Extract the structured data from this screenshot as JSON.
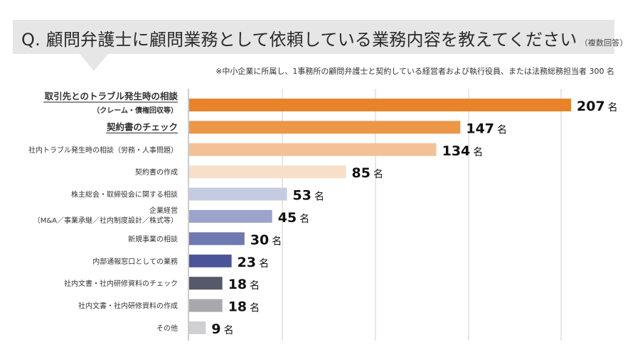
{
  "title": {
    "text": "Q. 顧問弁護士に顧問業務として依頼している業務内容を教えてください",
    "note": "（複数回答）"
  },
  "footnote": "※中小企業に所属し、1事務所の顧問弁護士と契約している経営者および執行役員、または法務総務担当者 300 名",
  "chart_data": {
    "type": "bar",
    "orientation": "horizontal",
    "unit": "名",
    "xlim": [
      0,
      207
    ],
    "grid": true,
    "categories": [
      [
        "取引先とのトラブル発生時の相談",
        "（クレーム・債権回収等）"
      ],
      [
        "契約書のチェック"
      ],
      [
        "社内トラブル発生時の相談（労務・人事問題）"
      ],
      [
        "契約書の作成"
      ],
      [
        "株主総会・取締役会に関する相談"
      ],
      [
        "企業経営",
        "（M&A／事業承継／社内制度設計／株式等）"
      ],
      [
        "新規事業の相談"
      ],
      [
        "内部通報窓口としての業務"
      ],
      [
        "社内文書・社内研修資料のチェック"
      ],
      [
        "社内文書・社内研修資料の作成"
      ],
      [
        "その他"
      ]
    ],
    "values": [
      207,
      147,
      134,
      85,
      53,
      45,
      30,
      23,
      18,
      18,
      9
    ],
    "colors": [
      "#e8832a",
      "#ec9648",
      "#f4c197",
      "#f8dfca",
      "#c5cbe0",
      "#9da4cc",
      "#6f78b1",
      "#4b5498",
      "#55596a",
      "#a8a8ad",
      "#d0d0d3"
    ],
    "emphasized": [
      true,
      true,
      false,
      false,
      false,
      false,
      false,
      false,
      false,
      false,
      false
    ]
  }
}
